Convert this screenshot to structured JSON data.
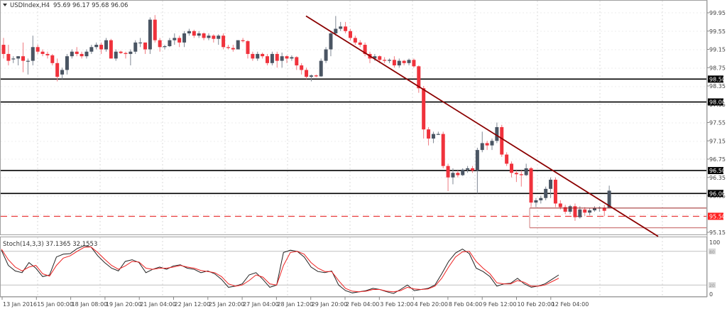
{
  "header": {
    "symbol_label": "USDIndex,H4",
    "ohlc_label": "95.69 96.17 95.68 96.06",
    "dropdown_icon": "triangle-down-icon"
  },
  "indicator": {
    "label": "Stoch(14,3,3) 37.1365 32.1553",
    "main_value": 37.1365,
    "signal_value": 32.1553,
    "levels": [
      80,
      20
    ],
    "scale_labels": [
      "100",
      "80",
      "20",
      "0"
    ]
  },
  "colors": {
    "bull": "#4a5563",
    "bear": "#f0323c",
    "trendline": "#8b0000",
    "level_line": "#000000",
    "dashed_level": "#e83a3a",
    "box_line": "#9b2020",
    "box_line_light": "#d08080",
    "stoch_main": "#222222",
    "stoch_signal": "#ee2222",
    "grid": "#d8d8d8"
  },
  "chart_data": [
    {
      "type": "candlestick",
      "title": "USDIndex,H4",
      "subtitle": "95.69 96.17 95.68 96.06",
      "ylim": [
        95.05,
        100.15
      ],
      "y_tick_labels": [
        "99.95",
        "99.55",
        "99.15",
        "98.75",
        "98.35",
        "97.95",
        "97.55",
        "97.15",
        "96.75",
        "96.35",
        "95.95",
        "95.15"
      ],
      "x_tick_labels": [
        "13 Jan 2016",
        "15 Jan 00:00",
        "18 Jan 08:00",
        "19 Jan 20:00",
        "21 Jan 04:00",
        "22 Jan 12:00",
        "25 Jan 20:00",
        "27 Jan 04:00",
        "28 Jan 12:00",
        "29 Jan 20:00",
        "2 Feb 04:00",
        "3 Feb 12:00",
        "4 Feb 20:00",
        "8 Feb 04:00",
        "9 Feb 12:00",
        "10 Feb 20:00",
        "12 Feb 04:00"
      ],
      "horizontal_levels": [
        {
          "price": 98.5,
          "label": "98.50",
          "style": "solid",
          "color": "#000000"
        },
        {
          "price": 98.0,
          "label": "98.00",
          "style": "solid",
          "color": "#000000"
        },
        {
          "price": 96.5,
          "label": "96.50",
          "style": "solid",
          "color": "#000000"
        },
        {
          "price": 96.0,
          "label": "96.00",
          "style": "solid",
          "color": "#000000"
        },
        {
          "price": 95.5,
          "label": "95.50",
          "style": "dashed",
          "color": "#e83a3a"
        }
      ],
      "trendline": {
        "from": {
          "x_index": 62,
          "price": 99.88
        },
        "to": {
          "x_index": 133,
          "price": 95.06
        },
        "color": "#8b0000"
      },
      "range_box": {
        "top_price": 95.68,
        "bottom_price": 95.25,
        "start_index": 108
      },
      "grid": true,
      "candles": [
        [
          99.25,
          99.4,
          98.95,
          99.05
        ],
        [
          99.05,
          99.25,
          98.8,
          98.9
        ],
        [
          98.95,
          99.0,
          98.85,
          98.95
        ],
        [
          98.95,
          99.0,
          98.8,
          99.0
        ],
        [
          99.0,
          99.3,
          98.65,
          98.9
        ],
        [
          98.9,
          98.95,
          98.6,
          98.9
        ],
        [
          98.9,
          99.45,
          98.8,
          99.2
        ],
        [
          99.2,
          99.25,
          99.05,
          99.1
        ],
        [
          99.1,
          99.15,
          99.0,
          99.05
        ],
        [
          99.05,
          99.1,
          98.95,
          99.02
        ],
        [
          99.02,
          99.05,
          98.8,
          98.85
        ],
        [
          98.85,
          98.95,
          98.45,
          98.55
        ],
        [
          98.6,
          98.75,
          98.5,
          98.7
        ],
        [
          98.7,
          99.05,
          98.6,
          99.0
        ],
        [
          99.0,
          99.15,
          98.95,
          99.1
        ],
        [
          99.1,
          99.2,
          99.0,
          99.05
        ],
        [
          99.05,
          99.1,
          98.95,
          99.0
        ],
        [
          99.0,
          99.15,
          98.95,
          99.1
        ],
        [
          99.1,
          99.25,
          99.05,
          99.2
        ],
        [
          99.2,
          99.3,
          99.15,
          99.25
        ],
        [
          99.25,
          99.3,
          99.05,
          99.15
        ],
        [
          99.15,
          99.4,
          99.1,
          99.35
        ],
        [
          99.35,
          99.38,
          98.95,
          98.95
        ],
        [
          98.95,
          99.15,
          98.9,
          99.1
        ],
        [
          99.1,
          99.12,
          99.05,
          99.07
        ],
        [
          99.07,
          99.1,
          98.95,
          99.05
        ],
        [
          99.05,
          99.15,
          98.8,
          99.1
        ],
        [
          99.1,
          99.35,
          99.05,
          99.3
        ],
        [
          99.3,
          99.4,
          99.2,
          99.3
        ],
        [
          99.3,
          99.3,
          99.05,
          99.15
        ],
        [
          99.15,
          99.85,
          99.05,
          99.8
        ],
        [
          99.8,
          99.9,
          99.3,
          99.35
        ],
        [
          99.35,
          99.4,
          99.1,
          99.2
        ],
        [
          99.2,
          99.25,
          99.15,
          99.22
        ],
        [
          99.22,
          99.4,
          99.2,
          99.35
        ],
        [
          99.35,
          99.5,
          99.25,
          99.4
        ],
        [
          99.4,
          99.45,
          99.2,
          99.3
        ],
        [
          99.3,
          99.55,
          99.2,
          99.5
        ],
        [
          99.5,
          99.6,
          99.45,
          99.55
        ],
        [
          99.55,
          99.58,
          99.4,
          99.45
        ],
        [
          99.45,
          99.55,
          99.4,
          99.5
        ],
        [
          99.5,
          99.52,
          99.35,
          99.4
        ],
        [
          99.4,
          99.5,
          99.35,
          99.45
        ],
        [
          99.45,
          99.48,
          99.3,
          99.38
        ],
        [
          99.38,
          99.48,
          99.25,
          99.45
        ],
        [
          99.45,
          99.5,
          99.15,
          99.2
        ],
        [
          99.2,
          99.25,
          99.15,
          99.18
        ],
        [
          99.18,
          99.25,
          99.1,
          99.15
        ],
        [
          99.15,
          99.35,
          99.15,
          99.35
        ],
        [
          99.35,
          99.4,
          99.3,
          99.33
        ],
        [
          99.33,
          99.35,
          98.95,
          99.05
        ],
        [
          99.05,
          99.1,
          98.9,
          98.95
        ],
        [
          98.95,
          99.1,
          98.9,
          99.05
        ],
        [
          99.05,
          99.08,
          98.95,
          99.0
        ],
        [
          99.0,
          99.05,
          98.8,
          98.85
        ],
        [
          98.85,
          99.1,
          98.8,
          99.05
        ],
        [
          99.05,
          99.1,
          98.75,
          98.9
        ],
        [
          98.9,
          99.08,
          98.75,
          99.0
        ],
        [
          99.0,
          99.02,
          98.85,
          98.95
        ],
        [
          98.95,
          99.02,
          98.9,
          98.98
        ],
        [
          98.98,
          99.0,
          98.7,
          98.8
        ],
        [
          98.8,
          98.85,
          98.6,
          98.7
        ],
        [
          98.7,
          98.75,
          98.5,
          98.55
        ],
        [
          98.55,
          98.6,
          98.45,
          98.58
        ],
        [
          98.58,
          98.6,
          98.54,
          98.56
        ],
        [
          98.56,
          98.95,
          98.55,
          98.9
        ],
        [
          98.9,
          99.2,
          98.85,
          99.15
        ],
        [
          99.15,
          99.55,
          99.0,
          99.5
        ],
        [
          99.5,
          99.88,
          99.45,
          99.6
        ],
        [
          99.6,
          99.75,
          99.55,
          99.65
        ],
        [
          99.65,
          99.75,
          99.5,
          99.55
        ],
        [
          99.55,
          99.6,
          99.35,
          99.4
        ],
        [
          99.4,
          99.45,
          99.25,
          99.3
        ],
        [
          99.3,
          99.35,
          99.2,
          99.25
        ],
        [
          99.25,
          99.3,
          99.0,
          99.05
        ],
        [
          99.05,
          99.1,
          98.85,
          98.95
        ],
        [
          98.95,
          99.05,
          98.9,
          99.0
        ],
        [
          99.0,
          99.02,
          98.85,
          98.92
        ],
        [
          98.92,
          98.98,
          98.85,
          98.9
        ],
        [
          98.9,
          98.95,
          98.85,
          98.92
        ],
        [
          98.92,
          99.0,
          98.75,
          98.8
        ],
        [
          98.8,
          98.95,
          98.75,
          98.9
        ],
        [
          98.9,
          98.92,
          98.8,
          98.85
        ],
        [
          98.85,
          98.95,
          98.8,
          98.92
        ],
        [
          98.92,
          98.95,
          98.75,
          98.78
        ],
        [
          98.78,
          98.8,
          98.2,
          98.3
        ],
        [
          98.3,
          98.35,
          97.2,
          97.4
        ],
        [
          97.4,
          97.45,
          97.05,
          97.2
        ],
        [
          97.2,
          97.35,
          97.1,
          97.3
        ],
        [
          97.3,
          97.35,
          97.28,
          97.3
        ],
        [
          97.3,
          97.35,
          96.55,
          96.6
        ],
        [
          96.6,
          96.65,
          96.05,
          96.35
        ],
        [
          96.35,
          96.55,
          96.2,
          96.45
        ],
        [
          96.45,
          96.5,
          96.35,
          96.4
        ],
        [
          96.4,
          96.55,
          96.38,
          96.52
        ],
        [
          96.52,
          96.6,
          96.45,
          96.55
        ],
        [
          96.55,
          96.6,
          96.45,
          96.5
        ],
        [
          96.5,
          97.0,
          96.0,
          96.95
        ],
        [
          96.95,
          97.35,
          96.9,
          97.1
        ],
        [
          97.1,
          97.15,
          96.95,
          97.05
        ],
        [
          97.05,
          97.2,
          96.95,
          97.15
        ],
        [
          97.15,
          97.55,
          97.1,
          97.45
        ],
        [
          97.45,
          97.5,
          96.8,
          96.85
        ],
        [
          96.85,
          96.9,
          96.6,
          96.65
        ],
        [
          96.65,
          96.7,
          96.35,
          96.45
        ],
        [
          96.45,
          96.5,
          96.25,
          96.42
        ],
        [
          96.42,
          96.5,
          96.15,
          96.4
        ],
        [
          96.4,
          96.65,
          96.38,
          96.55
        ],
        [
          96.55,
          96.58,
          95.7,
          95.8
        ],
        [
          95.8,
          95.9,
          95.7,
          95.85
        ],
        [
          95.85,
          95.95,
          95.78,
          95.9
        ],
        [
          95.9,
          96.15,
          95.85,
          96.1
        ],
        [
          96.1,
          96.35,
          95.9,
          96.3
        ],
        [
          96.3,
          96.35,
          95.7,
          95.78
        ],
        [
          95.78,
          95.85,
          95.65,
          95.7
        ],
        [
          95.7,
          95.75,
          95.55,
          95.6
        ],
        [
          95.6,
          95.75,
          95.55,
          95.72
        ],
        [
          95.72,
          95.78,
          95.4,
          95.48
        ],
        [
          95.48,
          95.72,
          95.45,
          95.65
        ],
        [
          95.65,
          95.7,
          95.5,
          95.58
        ],
        [
          95.58,
          95.68,
          95.52,
          95.63
        ],
        [
          95.63,
          95.72,
          95.6,
          95.68
        ],
        [
          95.68,
          95.72,
          95.6,
          95.69
        ],
        [
          95.69,
          95.75,
          95.5,
          95.62
        ],
        [
          95.69,
          96.17,
          95.68,
          96.06
        ]
      ]
    },
    {
      "type": "line",
      "title": "Stoch(14,3,3) 37.1365 32.1553",
      "ylim": [
        0,
        100
      ],
      "levels": [
        80,
        20
      ],
      "series": [
        {
          "name": "%K",
          "color": "#222222",
          "values": [
            82,
            55,
            45,
            42,
            60,
            50,
            35,
            38,
            70,
            75,
            76,
            85,
            90,
            88,
            72,
            60,
            50,
            45,
            62,
            65,
            60,
            42,
            48,
            52,
            48,
            54,
            56,
            50,
            48,
            42,
            45,
            40,
            30,
            16,
            18,
            22,
            38,
            42,
            30,
            16,
            20,
            78,
            82,
            80,
            70,
            52,
            44,
            42,
            45,
            20,
            10,
            6,
            8,
            10,
            14,
            12,
            8,
            5,
            12,
            20,
            10,
            12,
            14,
            20,
            40,
            62,
            77,
            84,
            76,
            50,
            44,
            35,
            18,
            22,
            23,
            32,
            22,
            16,
            18,
            22,
            30,
            38
          ]
        },
        {
          "name": "%D",
          "color": "#ee2222",
          "values": [
            84,
            65,
            52,
            45,
            52,
            55,
            40,
            36,
            55,
            68,
            72,
            80,
            87,
            88,
            78,
            66,
            55,
            48,
            54,
            62,
            61,
            50,
            48,
            50,
            50,
            52,
            55,
            52,
            50,
            46,
            44,
            42,
            35,
            22,
            18,
            20,
            28,
            38,
            34,
            22,
            20,
            55,
            78,
            80,
            75,
            60,
            50,
            44,
            44,
            28,
            14,
            9,
            8,
            9,
            12,
            12,
            9,
            8,
            10,
            16,
            13,
            12,
            13,
            18,
            32,
            52,
            70,
            79,
            80,
            62,
            50,
            40,
            24,
            22,
            22,
            28,
            25,
            18,
            18,
            20,
            26,
            32
          ]
        }
      ]
    }
  ]
}
